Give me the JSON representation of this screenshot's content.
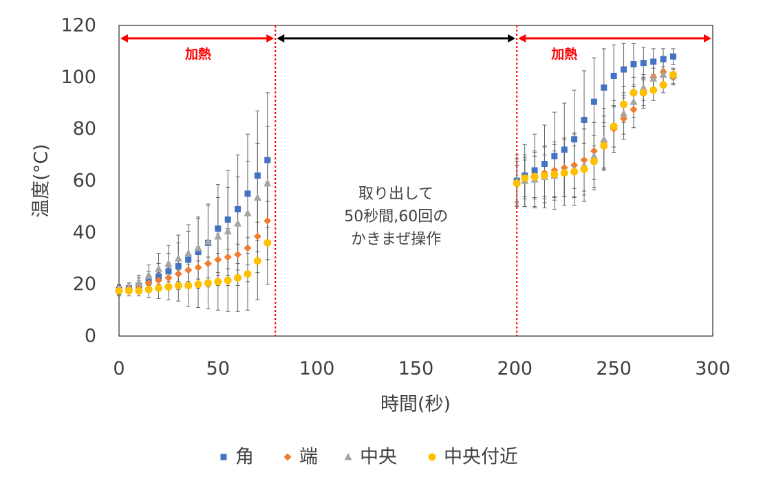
{
  "chart_data": {
    "type": "scatter",
    "xlabel": "時間(秒)",
    "ylabel": "温度(°C)",
    "xlim": [
      0,
      300
    ],
    "ylim": [
      0,
      120
    ],
    "xticks": [
      "0",
      "50",
      "100",
      "150",
      "200",
      "250",
      "300"
    ],
    "yticks": [
      "0",
      "20",
      "40",
      "60",
      "80",
      "100",
      "120"
    ],
    "grid": false,
    "legend_position": "bottom",
    "annotations": {
      "heating_label": "加熱",
      "middle_note": [
        "取り出して",
        "50秒間,60回の",
        "かきまぜ操作"
      ],
      "heating_1": [
        0,
        79
      ],
      "stirring": [
        79,
        201
      ],
      "heating_2": [
        201,
        300
      ],
      "divider_x": [
        79,
        201
      ],
      "annotation_y": 115,
      "heating_color": "#ff0000",
      "stirring_color": "#000000"
    },
    "series": [
      {
        "name": "角",
        "color": "#4472c4",
        "marker": "square",
        "x": [
          0,
          5,
          10,
          15,
          20,
          25,
          30,
          35,
          40,
          45,
          50,
          55,
          60,
          65,
          70,
          75,
          201,
          205,
          210,
          215,
          220,
          225,
          230,
          235,
          240,
          245,
          250,
          255,
          260,
          265,
          270,
          275,
          280
        ],
        "y": [
          18,
          18.5,
          19.5,
          21,
          23,
          25,
          27,
          29.5,
          32.5,
          36,
          41.5,
          45,
          49,
          55,
          62,
          68,
          60,
          62,
          64,
          66.5,
          69.5,
          72,
          76,
          83.5,
          90.5,
          96,
          100.5,
          103,
          105,
          105.5,
          106,
          107,
          108
        ],
        "err": [
          2,
          2,
          3,
          4,
          5,
          7,
          9,
          11,
          13,
          15,
          17,
          19,
          21,
          23,
          25,
          26,
          10,
          12,
          14,
          15,
          17,
          18,
          19,
          19,
          17,
          15,
          12,
          10,
          8,
          6,
          5,
          4,
          3
        ]
      },
      {
        "name": "端",
        "color": "#ed7d31",
        "marker": "diamond",
        "x": [
          0,
          5,
          10,
          15,
          20,
          25,
          30,
          35,
          40,
          45,
          50,
          55,
          60,
          65,
          70,
          75,
          201,
          205,
          210,
          215,
          220,
          225,
          230,
          235,
          240,
          245,
          250,
          255,
          260,
          265,
          270,
          275,
          280
        ],
        "y": [
          18,
          18.5,
          19.5,
          20.5,
          21.5,
          22.5,
          24,
          25.5,
          26.5,
          28,
          29.5,
          30.5,
          31.5,
          34,
          38.5,
          44.5,
          59.5,
          61,
          62,
          63,
          64,
          65,
          66,
          68,
          71.5,
          75,
          80,
          84,
          87.5,
          94,
          100,
          102,
          100
        ],
        "err": [
          2,
          2,
          2,
          3,
          3,
          4,
          5,
          6,
          8,
          9,
          10,
          11,
          12,
          13,
          14,
          15,
          8,
          8,
          9,
          10,
          10,
          11,
          12,
          12,
          11,
          10,
          9,
          8,
          7,
          6,
          5,
          4,
          3
        ]
      },
      {
        "name": "中央",
        "color": "#a5a5a5",
        "marker": "triangle",
        "x": [
          0,
          5,
          10,
          15,
          20,
          25,
          30,
          35,
          40,
          45,
          50,
          55,
          60,
          65,
          70,
          75,
          201,
          205,
          210,
          215,
          220,
          225,
          230,
          235,
          240,
          245,
          250,
          255,
          260,
          265,
          270,
          275,
          280
        ],
        "y": [
          18,
          18.5,
          20.5,
          23.5,
          26,
          28,
          30,
          32,
          34,
          36.5,
          38.5,
          40.5,
          43.5,
          47.5,
          53.5,
          59,
          59.5,
          60,
          60.5,
          61.5,
          62,
          63.5,
          64.5,
          66,
          69.5,
          76,
          81,
          86,
          90.5,
          96,
          99.5,
          101,
          100.5
        ],
        "err": [
          2,
          2,
          3,
          4,
          6,
          7,
          9,
          11,
          12,
          14,
          15,
          17,
          18,
          20,
          21,
          22,
          9,
          10,
          11,
          12,
          13,
          13,
          14,
          14,
          13,
          12,
          10,
          8,
          6,
          5,
          4,
          3,
          3
        ]
      },
      {
        "name": "中央付近",
        "color": "#ffc000",
        "marker": "circle",
        "x": [
          0,
          5,
          10,
          15,
          20,
          25,
          30,
          35,
          40,
          45,
          50,
          55,
          60,
          65,
          70,
          75,
          201,
          205,
          210,
          215,
          220,
          225,
          230,
          235,
          240,
          245,
          250,
          255,
          260,
          265,
          270,
          275,
          280
        ],
        "y": [
          17.5,
          17.5,
          17.5,
          18,
          18.5,
          19,
          19.5,
          19.5,
          20,
          20.5,
          21,
          21.5,
          22.5,
          24,
          29,
          36,
          59,
          61,
          61.5,
          62,
          62.5,
          63,
          63.5,
          64.5,
          67.5,
          73.5,
          81,
          89.5,
          94,
          94,
          95,
          97,
          101
        ],
        "err": [
          2,
          2,
          2,
          3,
          4,
          5,
          6,
          8,
          9,
          10,
          11,
          12,
          13,
          14,
          15,
          16,
          7,
          7,
          8,
          8,
          9,
          9,
          10,
          10,
          10,
          9,
          8,
          7,
          6,
          5,
          4,
          3,
          2
        ]
      }
    ]
  }
}
